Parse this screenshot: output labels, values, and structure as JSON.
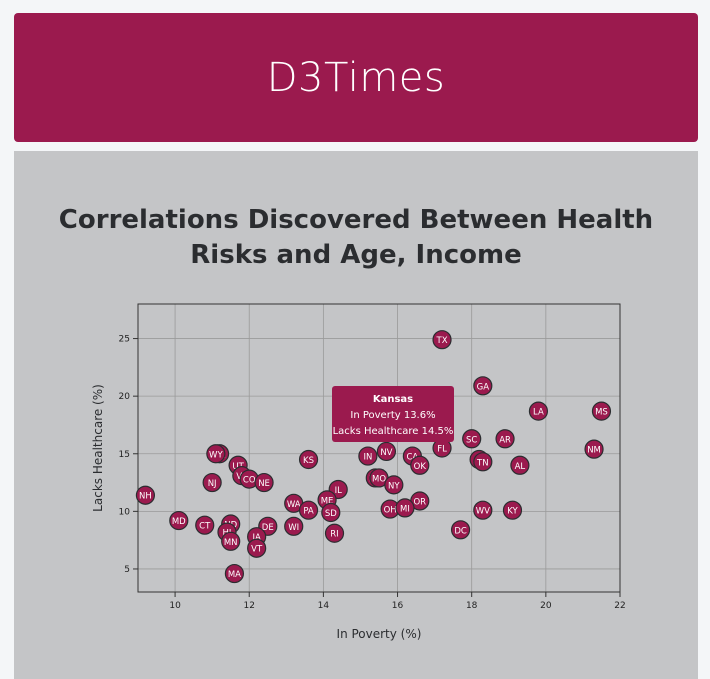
{
  "site": {
    "title": "D3Times"
  },
  "heading": {
    "line1": "Correlations Discovered Between Health",
    "line2": "Risks and Age, Income"
  },
  "colors": {
    "brand": "#9b1a4e",
    "panel": "#c4c5c7",
    "grid": "#9a9a9a",
    "marker_stroke": "#2b2d30"
  },
  "chart_data": {
    "type": "scatter",
    "xlabel": "In Poverty (%)",
    "ylabel": "Lacks Healthcare (%)",
    "xlim": [
      9,
      22
    ],
    "ylim": [
      3,
      28
    ],
    "xticks": [
      10,
      12,
      14,
      16,
      18,
      20,
      22
    ],
    "yticks": [
      5,
      10,
      15,
      20,
      25
    ],
    "grid": true,
    "points": [
      {
        "label": "TX",
        "x": 17.2,
        "y": 24.9
      },
      {
        "label": "GA",
        "x": 18.3,
        "y": 20.9
      },
      {
        "label": "MS",
        "x": 21.5,
        "y": 18.7
      },
      {
        "label": "LA",
        "x": 19.8,
        "y": 18.7
      },
      {
        "label": "SC",
        "x": 18.0,
        "y": 16.3
      },
      {
        "label": "AR",
        "x": 18.9,
        "y": 16.3
      },
      {
        "label": "NM",
        "x": 21.3,
        "y": 15.4
      },
      {
        "label": "AK",
        "x": 11.2,
        "y": 15.0
      },
      {
        "label": "WY",
        "x": 11.1,
        "y": 15.0
      },
      {
        "label": "NV",
        "x": 15.7,
        "y": 15.2
      },
      {
        "label": "FL",
        "x": 17.2,
        "y": 15.5
      },
      {
        "label": "KS",
        "x": 13.6,
        "y": 14.5
      },
      {
        "label": "IN",
        "x": 15.2,
        "y": 14.8
      },
      {
        "label": "CA",
        "x": 16.4,
        "y": 14.8
      },
      {
        "label": "AZ",
        "x": 18.2,
        "y": 14.5
      },
      {
        "label": "TN",
        "x": 18.3,
        "y": 14.3
      },
      {
        "label": "AL",
        "x": 19.3,
        "y": 14.0
      },
      {
        "label": "OK",
        "x": 16.6,
        "y": 14.0
      },
      {
        "label": "UT",
        "x": 11.7,
        "y": 14.0
      },
      {
        "label": "VA",
        "x": 11.8,
        "y": 13.1
      },
      {
        "label": "CO",
        "x": 12.0,
        "y": 12.8
      },
      {
        "label": "NE",
        "x": 12.4,
        "y": 12.5
      },
      {
        "label": "NJ",
        "x": 11.0,
        "y": 12.5
      },
      {
        "label": "MT",
        "x": 15.4,
        "y": 12.9
      },
      {
        "label": "MO",
        "x": 15.5,
        "y": 12.9
      },
      {
        "label": "NY",
        "x": 15.9,
        "y": 12.3
      },
      {
        "label": "IL",
        "x": 14.4,
        "y": 11.9
      },
      {
        "label": "NH",
        "x": 9.2,
        "y": 11.4
      },
      {
        "label": "ME",
        "x": 14.1,
        "y": 11.0
      },
      {
        "label": "OR",
        "x": 16.6,
        "y": 10.9
      },
      {
        "label": "WA",
        "x": 13.2,
        "y": 10.7
      },
      {
        "label": "PA",
        "x": 13.6,
        "y": 10.1
      },
      {
        "label": "SD",
        "x": 14.2,
        "y": 9.9
      },
      {
        "label": "OH",
        "x": 15.8,
        "y": 10.2
      },
      {
        "label": "MI",
        "x": 16.2,
        "y": 10.3
      },
      {
        "label": "WV",
        "x": 18.3,
        "y": 10.1
      },
      {
        "label": "KY",
        "x": 19.1,
        "y": 10.1
      },
      {
        "label": "MD",
        "x": 10.1,
        "y": 9.2
      },
      {
        "label": "CT",
        "x": 10.8,
        "y": 8.8
      },
      {
        "label": "ND",
        "x": 11.5,
        "y": 8.9
      },
      {
        "label": "DE",
        "x": 12.5,
        "y": 8.7
      },
      {
        "label": "WI",
        "x": 13.2,
        "y": 8.7
      },
      {
        "label": "HI",
        "x": 11.4,
        "y": 8.2
      },
      {
        "label": "RI",
        "x": 14.3,
        "y": 8.1
      },
      {
        "label": "DC",
        "x": 17.7,
        "y": 8.4
      },
      {
        "label": "IA",
        "x": 12.2,
        "y": 7.8
      },
      {
        "label": "MN",
        "x": 11.5,
        "y": 7.4
      },
      {
        "label": "VT",
        "x": 12.2,
        "y": 6.8
      },
      {
        "label": "MA",
        "x": 11.6,
        "y": 4.6
      }
    ],
    "tooltip": {
      "state": "Kansas",
      "line1": "In Poverty 13.6%",
      "line2": "Lacks Healthcare 14.5%"
    }
  }
}
